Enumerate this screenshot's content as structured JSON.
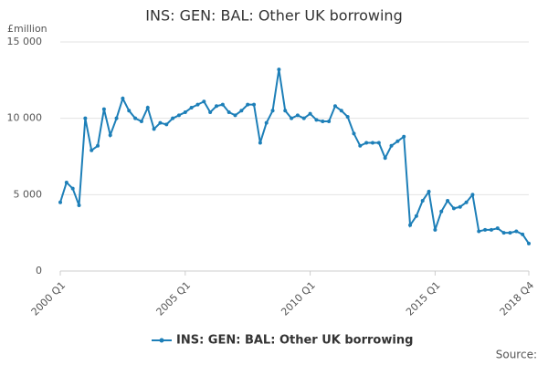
{
  "chart_data": {
    "type": "line",
    "title": "INS: GEN: BAL: Other UK borrowing",
    "y_label": "£million",
    "categories": [
      "2000 Q1",
      null,
      null,
      null,
      null,
      null,
      null,
      null,
      null,
      null,
      null,
      null,
      null,
      null,
      null,
      null,
      null,
      null,
      null,
      null,
      "2005 Q1",
      null,
      null,
      null,
      null,
      null,
      null,
      null,
      null,
      null,
      null,
      null,
      null,
      null,
      null,
      null,
      null,
      null,
      null,
      null,
      "2010 Q1",
      null,
      null,
      null,
      null,
      null,
      null,
      null,
      null,
      null,
      null,
      null,
      null,
      null,
      null,
      null,
      null,
      null,
      null,
      null,
      "2015 Q1",
      null,
      null,
      null,
      null,
      null,
      null,
      null,
      null,
      null,
      null,
      null,
      null,
      null,
      null,
      "2018 Q4"
    ],
    "series": [
      {
        "name": "INS: GEN: BAL: Other UK borrowing",
        "color": "#1d7fb8",
        "values": [
          4500,
          5800,
          5400,
          4300,
          10000,
          7900,
          8200,
          10600,
          8900,
          10000,
          11300,
          10500,
          10000,
          9800,
          10700,
          9300,
          9700,
          9600,
          10000,
          10200,
          10400,
          10700,
          10900,
          11100,
          10400,
          10800,
          10900,
          10400,
          10200,
          10500,
          10900,
          10900,
          8400,
          9700,
          10500,
          13200,
          10500,
          10000,
          10200,
          10000,
          10300,
          9900,
          9800,
          9800,
          10800,
          10500,
          10100,
          9000,
          8200,
          8400,
          8400,
          8400,
          7400,
          8200,
          8500,
          8800,
          3000,
          3600,
          4600,
          5200,
          2700,
          3900,
          4600,
          4100,
          4200,
          4500,
          5000,
          2600,
          2700,
          2700,
          2800,
          2500,
          2500,
          2600,
          2400,
          1800
        ]
      }
    ],
    "ylim": [
      0,
      15000
    ],
    "yticks": [
      0,
      {
        "value": 5000,
        "label": "5 000"
      },
      {
        "value": 10000,
        "label": "10 000"
      },
      {
        "value": 15000,
        "label": "15 000"
      }
    ],
    "grid": true,
    "source": "Source:"
  }
}
